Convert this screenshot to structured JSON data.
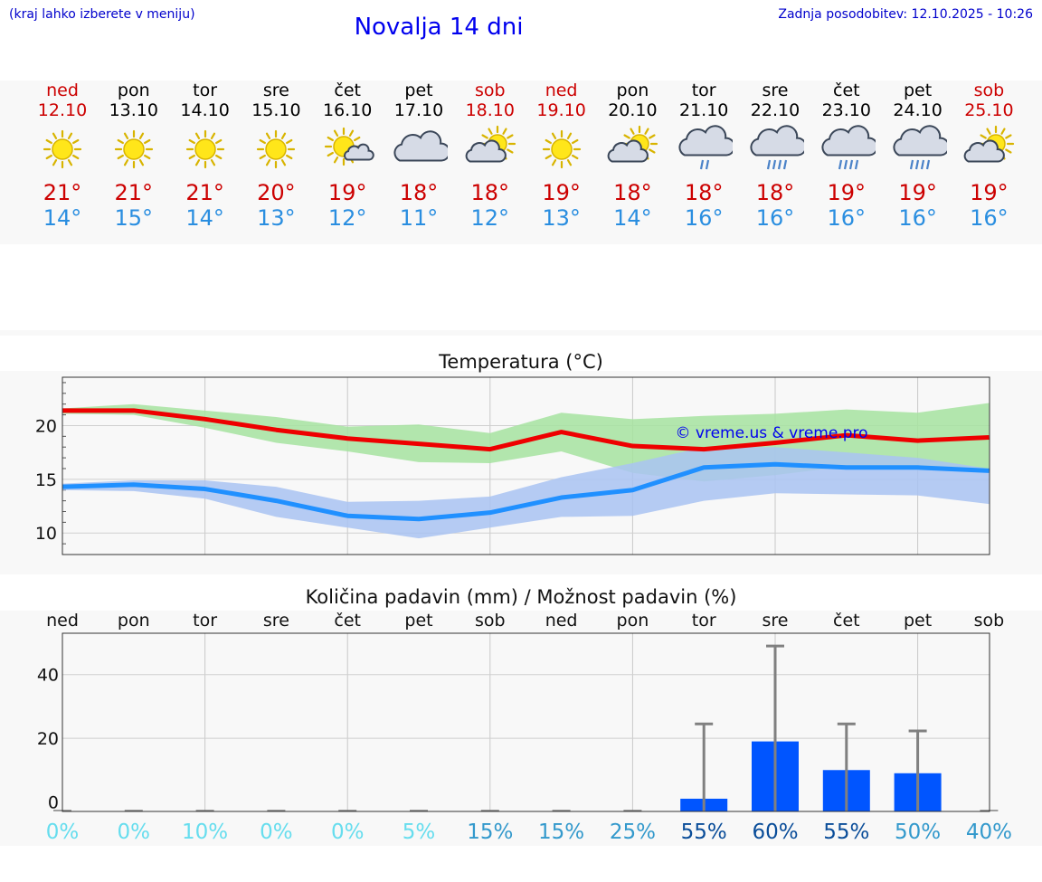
{
  "header": {
    "hint": "(kraj lahko izberete v meniju)",
    "title": "Novalja 14 dni",
    "last_update": "Zadnja posodobitev: 12.10.2025 - 10:26"
  },
  "days": [
    {
      "name": "ned",
      "date": "12.10",
      "icon": "sun-icon",
      "tmax": "21°",
      "tmin": "14°",
      "weekend": true
    },
    {
      "name": "pon",
      "date": "13.10",
      "icon": "sun-icon",
      "tmax": "21°",
      "tmin": "15°",
      "weekend": false
    },
    {
      "name": "tor",
      "date": "14.10",
      "icon": "sun-icon",
      "tmax": "21°",
      "tmin": "14°",
      "weekend": false
    },
    {
      "name": "sre",
      "date": "15.10",
      "icon": "sun-icon",
      "tmax": "20°",
      "tmin": "13°",
      "weekend": false
    },
    {
      "name": "čet",
      "date": "16.10",
      "icon": "sun-small-cloud-icon",
      "tmax": "19°",
      "tmin": "12°",
      "weekend": false
    },
    {
      "name": "pet",
      "date": "17.10",
      "icon": "cloud-icon",
      "tmax": "18°",
      "tmin": "11°",
      "weekend": false
    },
    {
      "name": "sob",
      "date": "18.10",
      "icon": "sun-cloud-icon",
      "tmax": "18°",
      "tmin": "12°",
      "weekend": true
    },
    {
      "name": "ned",
      "date": "19.10",
      "icon": "sun-icon",
      "tmax": "19°",
      "tmin": "13°",
      "weekend": true
    },
    {
      "name": "pon",
      "date": "20.10",
      "icon": "sun-cloud-icon",
      "tmax": "18°",
      "tmin": "14°",
      "weekend": false
    },
    {
      "name": "tor",
      "date": "21.10",
      "icon": "cloud-light-rain-icon",
      "tmax": "18°",
      "tmin": "16°",
      "weekend": false
    },
    {
      "name": "sre",
      "date": "22.10",
      "icon": "cloud-rain-icon",
      "tmax": "18°",
      "tmin": "16°",
      "weekend": false
    },
    {
      "name": "čet",
      "date": "23.10",
      "icon": "cloud-rain-icon",
      "tmax": "19°",
      "tmin": "16°",
      "weekend": false
    },
    {
      "name": "pet",
      "date": "24.10",
      "icon": "cloud-rain-icon",
      "tmax": "19°",
      "tmin": "16°",
      "weekend": false
    },
    {
      "name": "sob",
      "date": "25.10",
      "icon": "sun-cloud-icon",
      "tmax": "19°",
      "tmin": "16°",
      "weekend": true
    }
  ],
  "colors": {
    "max_line": "#ee0000",
    "min_line": "#2090ff",
    "max_band": "#a6e3a0",
    "min_band": "#a9c3f2",
    "overlap_band": "#78bfa8",
    "bar": "#0055ff",
    "whisker": "#808080",
    "weekend_text": "#cc0000"
  },
  "chart_data": [
    {
      "type": "line",
      "title": "Temperatura (°C)",
      "watermark": "© vreme.us & vreme.pro",
      "x": [
        0,
        1,
        2,
        3,
        4,
        5,
        6,
        7,
        8,
        9,
        10,
        11,
        12,
        13
      ],
      "ylim": [
        8,
        24.5
      ],
      "yticks": [
        10,
        15,
        20
      ],
      "grid": true,
      "series": [
        {
          "key": "max",
          "values": [
            21.4,
            21.4,
            20.6,
            19.6,
            18.8,
            18.3,
            17.8,
            19.4,
            18.1,
            17.8,
            18.4,
            19.1,
            18.6,
            18.9
          ]
        },
        {
          "key": "max_low",
          "values": [
            21.1,
            21.0,
            19.8,
            18.4,
            17.6,
            16.6,
            16.5,
            17.6,
            15.6,
            14.8,
            15.4,
            16.2,
            15.9,
            15.9
          ]
        },
        {
          "key": "max_high",
          "values": [
            21.6,
            22.0,
            21.4,
            20.8,
            19.9,
            20.1,
            19.3,
            21.2,
            20.6,
            20.9,
            21.1,
            21.5,
            21.2,
            22.1
          ]
        },
        {
          "key": "min",
          "values": [
            14.3,
            14.5,
            14.1,
            13.0,
            11.6,
            11.3,
            11.9,
            13.3,
            14.0,
            16.1,
            16.4,
            16.1,
            16.1,
            15.8
          ]
        },
        {
          "key": "min_low",
          "values": [
            14.0,
            13.9,
            13.2,
            11.5,
            10.5,
            9.5,
            10.5,
            11.5,
            11.6,
            13.0,
            13.7,
            13.6,
            13.5,
            12.7
          ]
        },
        {
          "key": "min_high",
          "values": [
            14.6,
            14.9,
            14.9,
            14.3,
            12.9,
            13.0,
            13.4,
            15.2,
            16.5,
            18.0,
            18.0,
            17.5,
            17.0,
            16.0
          ]
        }
      ]
    },
    {
      "type": "bar",
      "title": "Količina padavin (mm) / Možnost padavin (%)",
      "categories": [
        "ned",
        "pon",
        "tor",
        "sre",
        "čet",
        "pet",
        "sob",
        "ned",
        "pon",
        "tor",
        "sre",
        "čet",
        "pet",
        "sob"
      ],
      "values": [
        0,
        0,
        0,
        0,
        0,
        0,
        0,
        0,
        0,
        1,
        19,
        10,
        9,
        0
      ],
      "whisker_high": [
        0,
        0,
        0,
        0,
        0,
        0,
        0,
        0,
        0,
        24.5,
        49,
        24.5,
        22.3,
        0
      ],
      "probability": [
        "0%",
        "0%",
        "10%",
        "0%",
        "0%",
        "5%",
        "15%",
        "15%",
        "25%",
        "55%",
        "60%",
        "55%",
        "50%",
        "40%"
      ],
      "probability_colors": [
        "#66ddee",
        "#66ddee",
        "#66ddee",
        "#66ddee",
        "#66ddee",
        "#66ddee",
        "#3399cc",
        "#3399cc",
        "#3399cc",
        "#0a4d99",
        "#0a4d99",
        "#0a4d99",
        "#3399cc",
        "#3399cc"
      ],
      "ylim": [
        -3,
        53
      ],
      "yticks": [
        0,
        20,
        40
      ],
      "grid": true
    }
  ]
}
